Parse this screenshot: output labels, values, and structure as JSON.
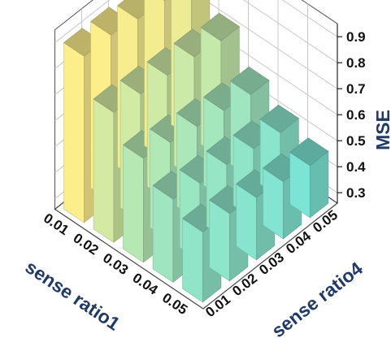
{
  "chart_data": {
    "type": "bar3d",
    "x_axis": {
      "label": "sense ratio1",
      "categories": [
        "0.01",
        "0.02",
        "0.03",
        "0.04",
        "0.05"
      ]
    },
    "y_axis": {
      "label": "sense ratio4",
      "categories": [
        "0.01",
        "0.02",
        "0.03",
        "0.04",
        "0.05"
      ]
    },
    "z_axis": {
      "label": "MSE",
      "ticks": [
        "0.3",
        "0.4",
        "0.5",
        "0.6",
        "0.7",
        "0.8",
        "0.9"
      ],
      "range": [
        0.26,
        0.95
      ]
    },
    "values": [
      [
        0.9,
        0.9,
        0.88,
        0.87,
        0.84
      ],
      [
        0.76,
        0.75,
        0.74,
        0.73,
        0.71
      ],
      [
        0.66,
        0.64,
        0.62,
        0.6,
        0.58
      ],
      [
        0.58,
        0.56,
        0.55,
        0.53,
        0.51
      ],
      [
        0.53,
        0.52,
        0.5,
        0.48,
        0.46
      ]
    ],
    "colormap": [
      "#7de6d6",
      "#fff08c"
    ],
    "grid": true
  }
}
